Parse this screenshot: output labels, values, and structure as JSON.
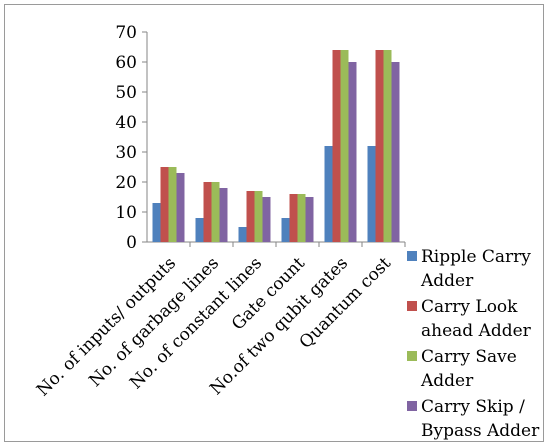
{
  "chart_data": {
    "type": "bar",
    "title": "",
    "xlabel": "",
    "ylabel": "",
    "ylim": [
      0,
      70
    ],
    "yticks": [
      0,
      10,
      20,
      30,
      40,
      50,
      60,
      70
    ],
    "grid": false,
    "legend_position": "right",
    "categories": [
      "No. of inputs/ outputs",
      "No. of garbage lines",
      "No. of constant lines",
      "Gate count",
      "No.of two qubit gates",
      "Quantum cost"
    ],
    "series": [
      {
        "name": "Ripple Carry Adder",
        "legend_lines": [
          "Ripple Carry",
          "Adder"
        ],
        "color": "#4f81bd",
        "values": [
          13,
          8,
          5,
          8,
          32,
          32
        ]
      },
      {
        "name": "Carry Look ahead Adder",
        "legend_lines": [
          "Carry Look",
          "ahead Adder"
        ],
        "color": "#c0504d",
        "values": [
          25,
          20,
          17,
          16,
          64,
          64
        ]
      },
      {
        "name": "Carry Save Adder",
        "legend_lines": [
          "Carry Save",
          "Adder"
        ],
        "color": "#9bbb59",
        "values": [
          25,
          20,
          17,
          16,
          64,
          64
        ]
      },
      {
        "name": "Carry Skip / Bypass Adder",
        "legend_lines": [
          "Carry Skip /",
          "Bypass Adder"
        ],
        "color": "#8064a2",
        "values": [
          23,
          18,
          15,
          15,
          60,
          60
        ]
      }
    ]
  }
}
